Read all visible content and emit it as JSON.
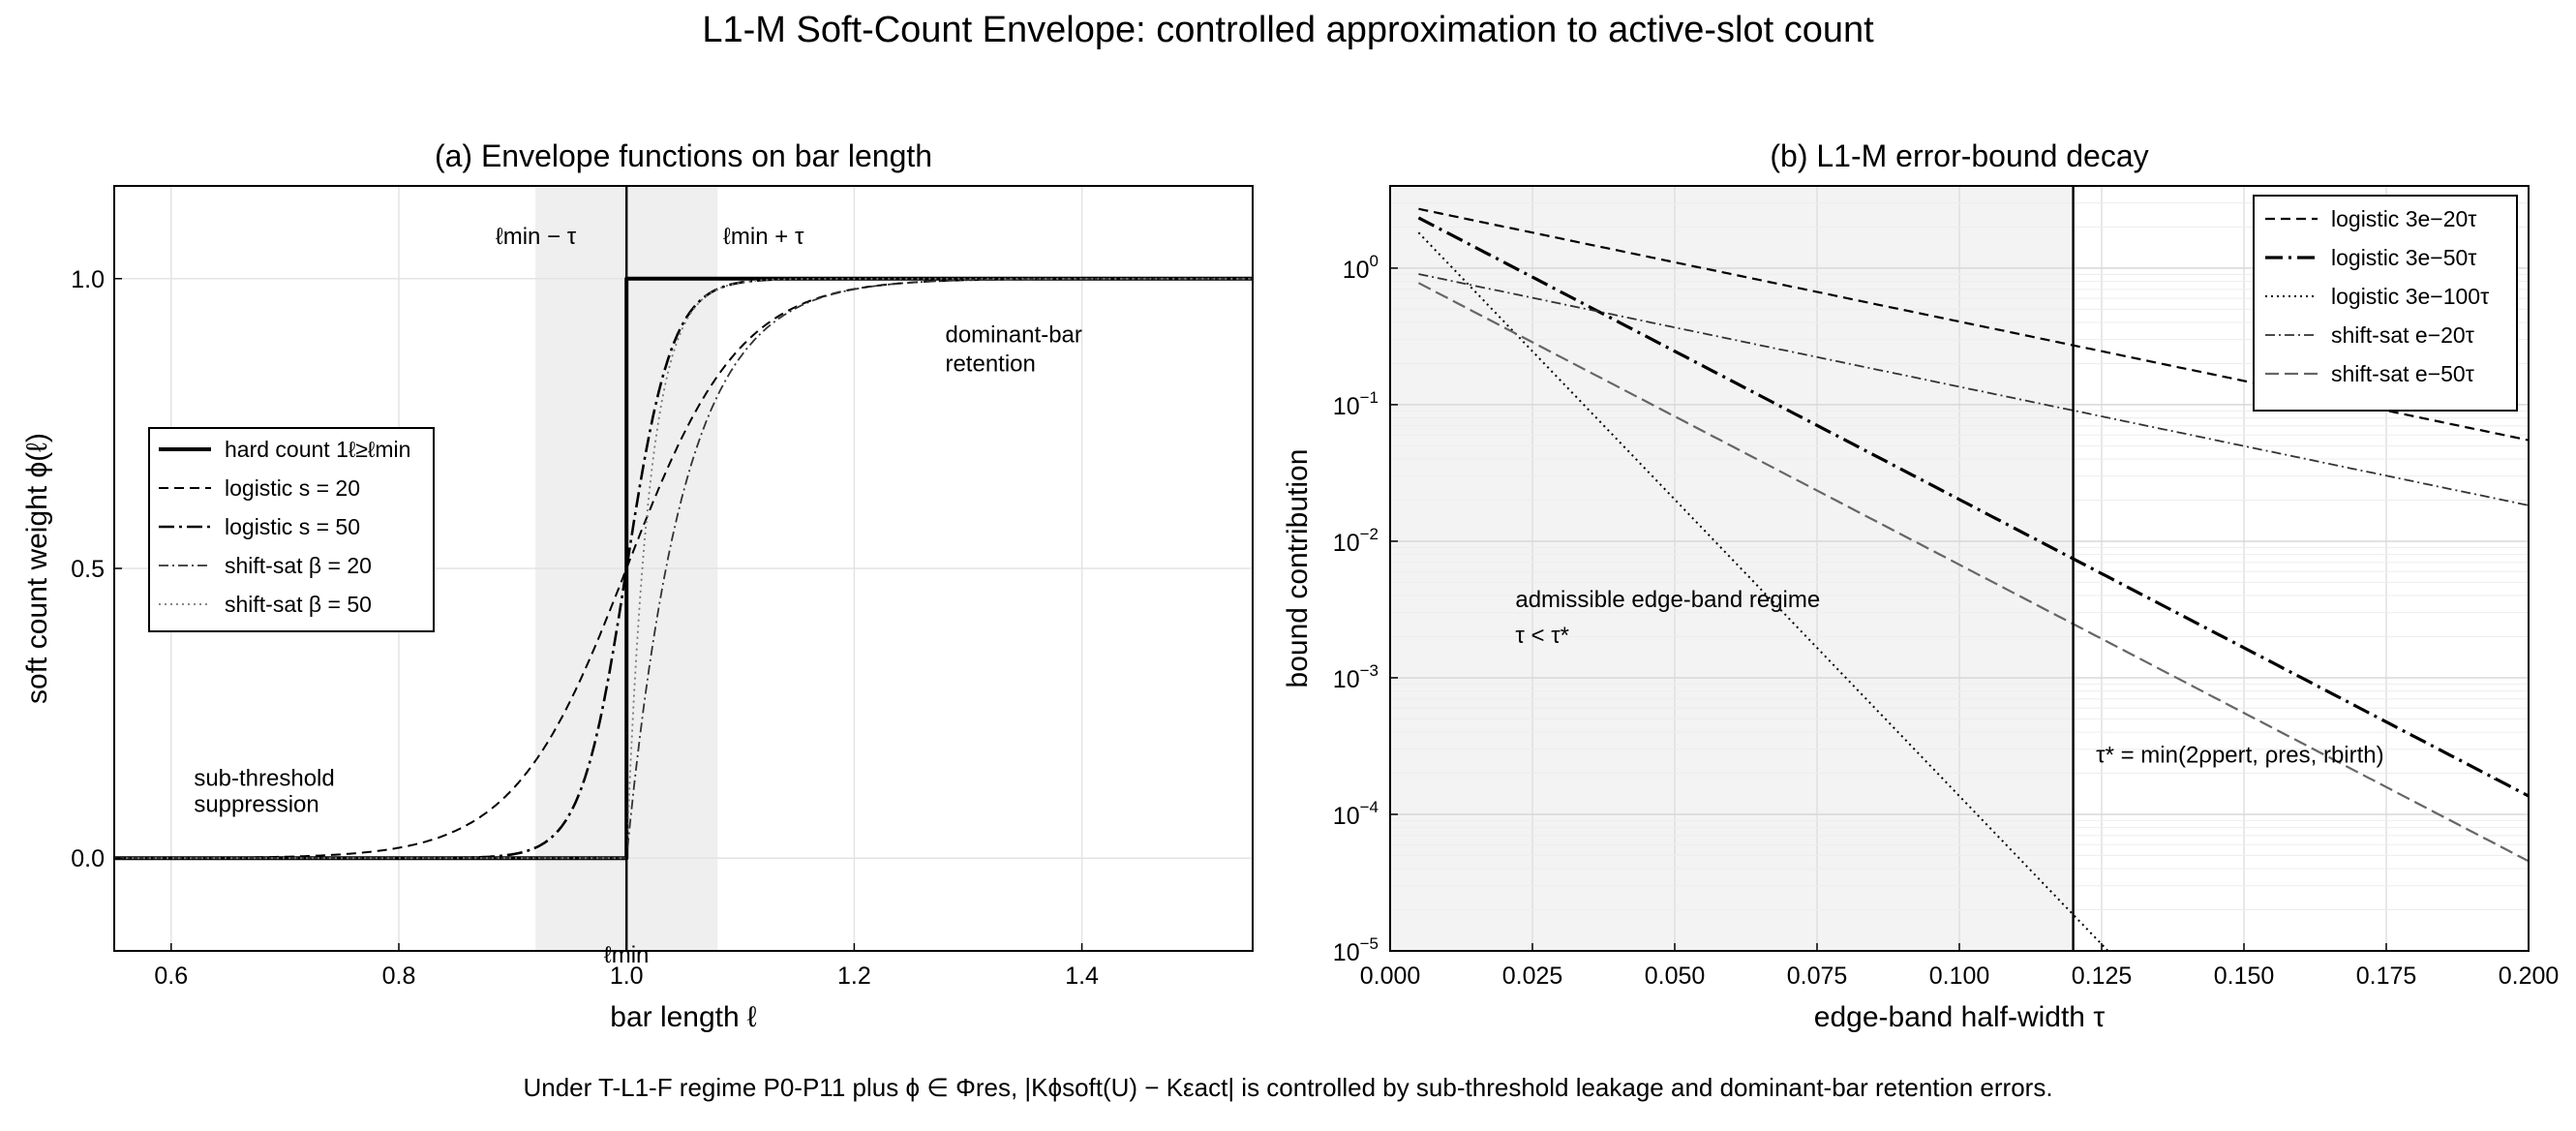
{
  "figure": {
    "title": "L1-M Soft-Count Envelope: controlled approximation to active-slot count",
    "footer": "Under T-L1-F regime P0-P11 plus ϕ ∈ Φres, |Kϕsoft(U) − Kεact| is controlled by sub-threshold leakage and dominant-bar retention errors."
  },
  "chart_data": [
    {
      "type": "line",
      "title": "(a) Envelope functions on bar length",
      "xlabel": "bar length  ℓ",
      "ylabel": "soft count weight  ϕ(ℓ)",
      "xlim": [
        0.55,
        1.55
      ],
      "ylim": [
        -0.16,
        1.16
      ],
      "xticks": [
        0.6,
        0.8,
        1.0,
        1.2,
        1.4
      ],
      "xtick_labels": [
        "0.6",
        "0.8",
        "1.0",
        "1.2",
        "1.4"
      ],
      "yticks": [
        0.0,
        0.5,
        1.0
      ],
      "ytick_labels": [
        "0.0",
        "0.5",
        "1.0"
      ],
      "grid": true,
      "legend_position": "center-left",
      "threshold": {
        "l_min": 1.0,
        "tau": 0.08
      },
      "shaded_band": [
        0.92,
        1.08
      ],
      "series": [
        {
          "name": "hard count  1ℓ≥ℓmin",
          "kind": "hard",
          "param": null,
          "x": [
            0.55,
            1.0,
            1.0,
            1.55
          ],
          "y": [
            0,
            0,
            1,
            1
          ],
          "color": "#000000",
          "dash": "solid",
          "width": 4
        },
        {
          "name": "logistic  s = 20",
          "kind": "logistic",
          "param": 20,
          "x": [
            0.6,
            0.7,
            0.8,
            0.85,
            0.9,
            0.95,
            1.0,
            1.05,
            1.1,
            1.15,
            1.2,
            1.3,
            1.4
          ],
          "y": [
            0.0003,
            0.0025,
            0.018,
            0.047,
            0.119,
            0.269,
            0.5,
            0.731,
            0.881,
            0.953,
            0.982,
            0.9975,
            0.9997
          ],
          "color": "#000000",
          "dash": "10,6",
          "width": 2
        },
        {
          "name": "logistic  s = 50",
          "kind": "logistic",
          "param": 50,
          "x": [
            0.85,
            0.9,
            0.95,
            1.0,
            1.05,
            1.1,
            1.15
          ],
          "y": [
            0.0006,
            0.0067,
            0.076,
            0.5,
            0.924,
            0.993,
            0.9994
          ],
          "color": "#000000",
          "dash": "16,5,3,5",
          "width": 2.6
        },
        {
          "name": "shift-sat  β = 20",
          "kind": "shiftsat",
          "param": 20,
          "x": [
            1.0,
            1.02,
            1.05,
            1.1,
            1.15,
            1.2,
            1.3,
            1.4
          ],
          "y": [
            0,
            0.33,
            0.63,
            0.86,
            0.95,
            0.98,
            0.9975,
            0.9997
          ],
          "color": "#333333",
          "dash": "10,4,2,4",
          "width": 1.8
        },
        {
          "name": "shift-sat  β = 50",
          "kind": "shiftsat",
          "param": 50,
          "x": [
            1.0,
            1.01,
            1.02,
            1.05,
            1.1,
            1.15
          ],
          "y": [
            0,
            0.39,
            0.63,
            0.92,
            0.993,
            0.9994
          ],
          "color": "#777777",
          "dash": "2,4",
          "width": 1.8
        }
      ],
      "annotations": [
        {
          "text": "ℓmin − τ",
          "at": [
            0.885,
            1.06
          ]
        },
        {
          "text": "ℓmin + τ",
          "at": [
            1.085,
            1.06
          ]
        },
        {
          "text": "dominant-bar",
          "at": [
            1.28,
            0.89
          ]
        },
        {
          "text": "retention",
          "at": [
            1.28,
            0.84
          ]
        },
        {
          "text": "sub-threshold",
          "at": [
            0.62,
            0.125
          ]
        },
        {
          "text": "suppression",
          "at": [
            0.62,
            0.08
          ]
        },
        {
          "text": "ℓmin",
          "at": [
            1.0,
            -0.18
          ]
        }
      ]
    },
    {
      "type": "line",
      "title": "(b) L1-M error-bound decay",
      "xlabel": "edge-band half-width  τ",
      "ylabel": "bound contribution",
      "xlim": [
        0.0,
        0.2
      ],
      "ylim": [
        1e-05,
        4
      ],
      "yscale": "log",
      "xticks": [
        0.0,
        0.025,
        0.05,
        0.075,
        0.1,
        0.125,
        0.15,
        0.175,
        0.2
      ],
      "xtick_labels": [
        "0.000",
        "0.025",
        "0.050",
        "0.075",
        "0.100",
        "0.125",
        "0.150",
        "0.175",
        "0.200"
      ],
      "yticks": [
        1e-05,
        0.0001,
        0.001,
        0.01,
        0.1,
        1
      ],
      "ytick_labels": [
        {
          "base": "10",
          "exp": "−5"
        },
        {
          "base": "10",
          "exp": "−4"
        },
        {
          "base": "10",
          "exp": "−3"
        },
        {
          "base": "10",
          "exp": "−2"
        },
        {
          "base": "10",
          "exp": "−1"
        },
        {
          "base": "10",
          "exp": "0"
        }
      ],
      "grid": true,
      "legend_position": "top-right",
      "tau_star": 0.12,
      "shaded_band": [
        0.0,
        0.12
      ],
      "series": [
        {
          "name": "logistic  3e−20τ",
          "coef": 3,
          "rate": 20,
          "x": [
            0.005,
            0.05,
            0.1,
            0.12,
            0.15,
            0.2
          ],
          "y": [
            2.71,
            1.1,
            0.406,
            0.272,
            0.149,
            0.055
          ],
          "color": "#000000",
          "dash": "10,6",
          "width": 2.2
        },
        {
          "name": "logistic  3e−50τ",
          "coef": 3,
          "rate": 50,
          "x": [
            0.005,
            0.05,
            0.1,
            0.12,
            0.15,
            0.2
          ],
          "y": [
            2.34,
            0.246,
            0.0202,
            0.0074,
            0.00166,
            0.000136
          ],
          "color": "#000000",
          "dash": "18,6,3,6",
          "width": 3.2
        },
        {
          "name": "logistic  3e−100τ",
          "coef": 3,
          "rate": 100,
          "x": [
            0.005,
            0.025,
            0.05,
            0.075,
            0.1,
            0.12,
            0.123
          ],
          "y": [
            1.82,
            0.246,
            0.0202,
            0.00166,
            0.000136,
            1.8e-05,
            1.33e-05
          ],
          "color": "#000000",
          "dash": "2,4",
          "width": 2
        },
        {
          "name": "shift-sat  e−20τ",
          "coef": 1,
          "rate": 20,
          "x": [
            0.005,
            0.05,
            0.1,
            0.12,
            0.15,
            0.2
          ],
          "y": [
            0.905,
            0.368,
            0.135,
            0.091,
            0.0498,
            0.0183
          ],
          "color": "#333333",
          "dash": "10,4,2,4",
          "width": 1.8
        },
        {
          "name": "shift-sat  e−50τ",
          "coef": 1,
          "rate": 50,
          "x": [
            0.005,
            0.05,
            0.1,
            0.12,
            0.15,
            0.2
          ],
          "y": [
            0.779,
            0.082,
            0.0067,
            0.00248,
            0.00055,
            4.54e-05
          ],
          "color": "#666666",
          "dash": "14,6",
          "width": 2.2
        }
      ],
      "annotations": [
        {
          "text": "admissible edge-band regime",
          "at": [
            0.022,
            0.0033
          ]
        },
        {
          "text": "τ < τ*",
          "at": [
            0.022,
            0.0018
          ]
        },
        {
          "text": "τ* = min(2ρpert, ρres, rbirth)",
          "at": [
            0.124,
            0.00024
          ]
        }
      ]
    }
  ]
}
